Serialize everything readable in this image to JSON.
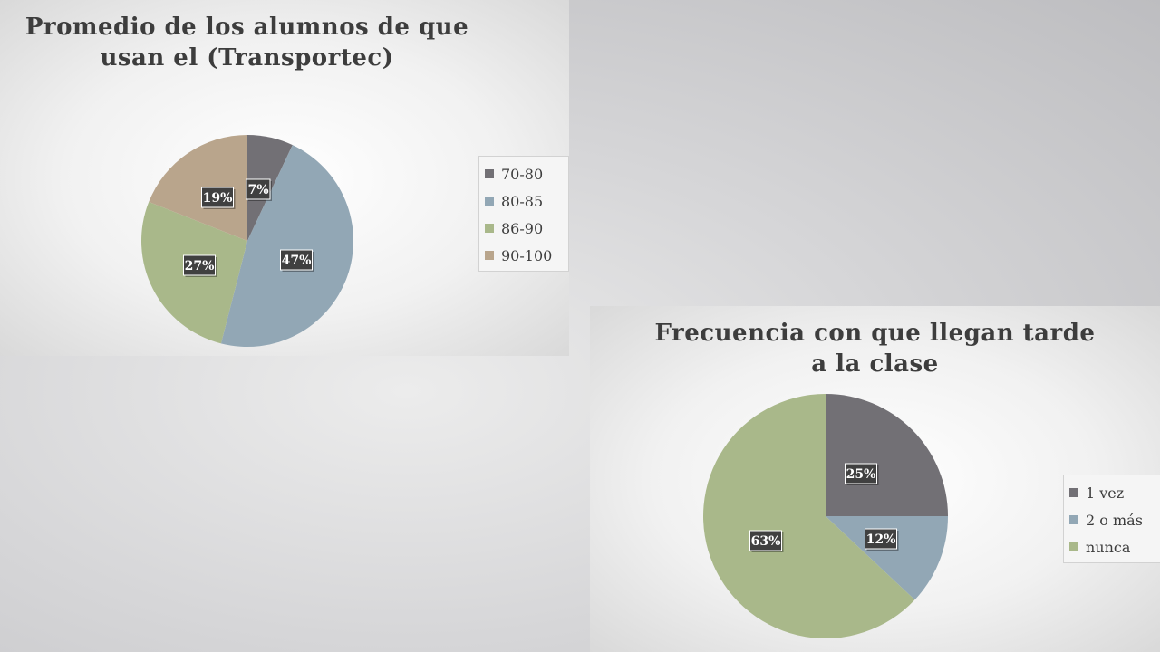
{
  "chart_data": [
    {
      "type": "pie",
      "title_lines": [
        "Promedio de los alumnos de que",
        "usan el (Transportec)"
      ],
      "categories": [
        "70-80",
        "80-85",
        "86-90",
        "90-100"
      ],
      "values": [
        7,
        47,
        27,
        19
      ],
      "labels": [
        "7%",
        "47%",
        "27%",
        "19%"
      ],
      "colors": [
        "#727075",
        "#92a7b5",
        "#a9b88a",
        "#b9a58c"
      ],
      "legend_position": "right"
    },
    {
      "type": "pie",
      "title_lines": [
        "Frecuencia con que llegan tarde",
        "a la clase"
      ],
      "categories": [
        "1 vez",
        "2 o más",
        "nunca"
      ],
      "values": [
        25,
        12,
        63
      ],
      "labels": [
        "25%",
        "12%",
        "63%"
      ],
      "colors": [
        "#727075",
        "#92a7b5",
        "#a9b88a"
      ],
      "legend_position": "right"
    }
  ]
}
